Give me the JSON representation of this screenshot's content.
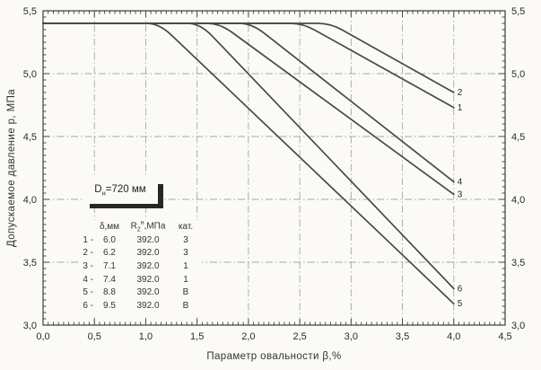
{
  "colors": {
    "background": "#fbfaf7",
    "frame": "#3d3d3d",
    "grid": "#a6a6a6",
    "curve": "#4a4a4a",
    "text": "#2b2b2b",
    "shadow": "#262626"
  },
  "chart_data": {
    "type": "line",
    "title": "",
    "xlabel": "Параметр овальности β,%",
    "ylabel": "Допускаемое давление p, МПа",
    "xlim": [
      0,
      4.5
    ],
    "ylim": [
      3.0,
      5.5
    ],
    "x_major_ticks": [
      0,
      0.5,
      1.0,
      1.5,
      2.0,
      2.5,
      3.0,
      3.5,
      4.0,
      4.5
    ],
    "x_tick_labels": [
      "0,0",
      "0,5",
      "1,0",
      "1,5",
      "2,0",
      "2,5",
      "3,0",
      "3,5",
      "4,0",
      "4,5"
    ],
    "y_major_ticks": [
      3.0,
      3.5,
      4.0,
      4.5,
      5.0,
      5.5
    ],
    "y_tick_labels": [
      "3,0",
      "3,5",
      "4,0",
      "4,5",
      "5,0",
      "5,5"
    ],
    "y_axis_right_mirrored": true,
    "minor_tick_step": 0.05,
    "grid_on": true,
    "grid_style": "dash-dot",
    "grid_x": [
      0.5,
      1.0,
      1.5,
      2.0,
      2.5,
      3.0,
      3.5,
      4.0
    ],
    "grid_y": [
      3.5,
      4.0,
      4.5,
      5.0
    ],
    "plateau_pressure": 5.4,
    "curve_start_x": 0,
    "curve_end_x": 4.0,
    "legend_position": "left-middle",
    "series": [
      {
        "label": "1",
        "delta_mm": 6.0,
        "r2n_mpa": 392.0,
        "category": "3",
        "break_beta": 2.53,
        "end_pressure": 4.73
      },
      {
        "label": "2",
        "delta_mm": 6.2,
        "r2n_mpa": 392.0,
        "category": "3",
        "break_beta": 2.8,
        "end_pressure": 4.85
      },
      {
        "label": "3",
        "delta_mm": 7.1,
        "r2n_mpa": 392.0,
        "category": "1",
        "break_beta": 1.72,
        "end_pressure": 4.04
      },
      {
        "label": "4",
        "delta_mm": 7.4,
        "r2n_mpa": 392.0,
        "category": "1",
        "break_beta": 2.03,
        "end_pressure": 4.14
      },
      {
        "label": "5",
        "delta_mm": 8.8,
        "r2n_mpa": 392.0,
        "category": "В",
        "break_beta": 1.13,
        "end_pressure": 3.17
      },
      {
        "label": "6",
        "delta_mm": 9.5,
        "r2n_mpa": 392.0,
        "category": "В",
        "break_beta": 1.53,
        "end_pressure": 3.29
      }
    ]
  },
  "annotation_box": {
    "base": "D",
    "sub": "н",
    "rest": "=720 мм"
  },
  "legend_table": {
    "header": {
      "col_delta": "δ,мм",
      "col_r_base": "R",
      "col_r_sub": "2",
      "col_r_sup": "н",
      "col_r_rest": ",МПа",
      "col_cat": "кат."
    },
    "rows": [
      [
        "1 -",
        "6.0",
        "392.0",
        "3"
      ],
      [
        "2 -",
        "6.2",
        "392.0",
        "3"
      ],
      [
        "3 -",
        "7.1",
        "392.0",
        "1"
      ],
      [
        "4 -",
        "7.4",
        "392.0",
        "1"
      ],
      [
        "5 -",
        "8.8",
        "392.0",
        "В"
      ],
      [
        "6 -",
        "9.5",
        "392.0",
        "В"
      ]
    ]
  }
}
